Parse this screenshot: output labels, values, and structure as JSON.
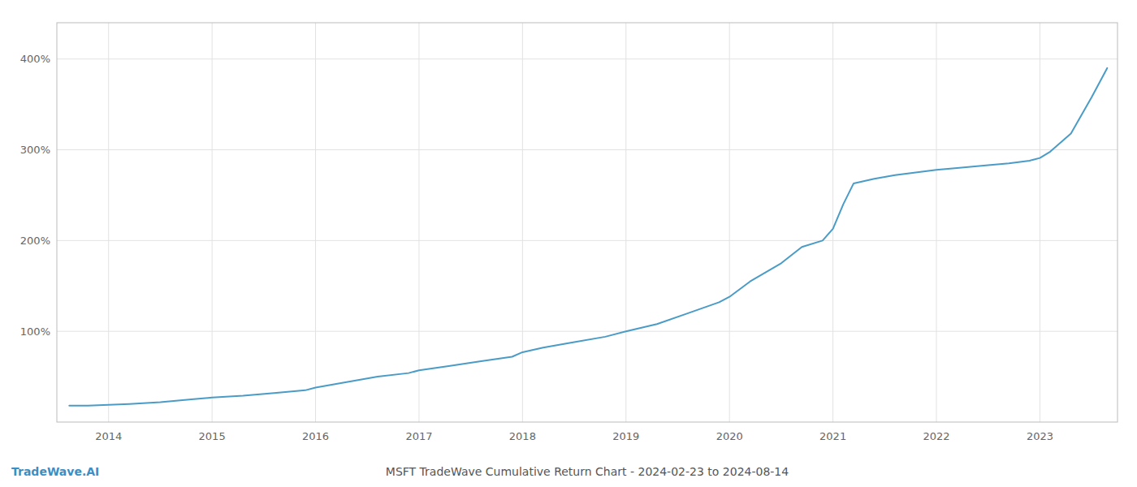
{
  "chart_data": {
    "type": "line",
    "title": "MSFT TradeWave Cumulative Return Chart - 2024-02-23 to 2024-08-14",
    "annotations": [
      "TradeWave.AI"
    ],
    "color": "#4a9cc7",
    "grid": true,
    "x": [
      2013.62,
      2013.8,
      2014.0,
      2014.2,
      2014.5,
      2014.8,
      2015.0,
      2015.3,
      2015.6,
      2015.9,
      2016.0,
      2016.3,
      2016.6,
      2016.9,
      2017.0,
      2017.3,
      2017.6,
      2017.9,
      2018.0,
      2018.2,
      2018.5,
      2018.8,
      2019.0,
      2019.3,
      2019.6,
      2019.9,
      2020.0,
      2020.2,
      2020.5,
      2020.7,
      2020.9,
      2021.0,
      2021.1,
      2021.2,
      2021.4,
      2021.6,
      2021.8,
      2022.0,
      2022.2,
      2022.5,
      2022.7,
      2022.9,
      2023.0,
      2023.1,
      2023.3,
      2023.5,
      2023.65
    ],
    "values": [
      18,
      18,
      19,
      20,
      22,
      25,
      27,
      29,
      32,
      35,
      38,
      44,
      50,
      54,
      57,
      62,
      67,
      72,
      77,
      82,
      88,
      94,
      100,
      108,
      120,
      132,
      138,
      155,
      175,
      193,
      200,
      213,
      240,
      263,
      268,
      272,
      275,
      278,
      280,
      283,
      285,
      288,
      291,
      298,
      318,
      358,
      390
    ],
    "xlim": [
      2013.5,
      2023.75
    ],
    "xticks": [
      2014,
      2015,
      2016,
      2017,
      2018,
      2019,
      2020,
      2021,
      2022,
      2023
    ],
    "ylim": [
      0,
      440
    ],
    "yticks": [
      {
        "value": 100,
        "label": "100%"
      },
      {
        "value": 200,
        "label": "200%"
      },
      {
        "value": 300,
        "label": "300%"
      },
      {
        "value": 400,
        "label": "400%"
      }
    ]
  }
}
